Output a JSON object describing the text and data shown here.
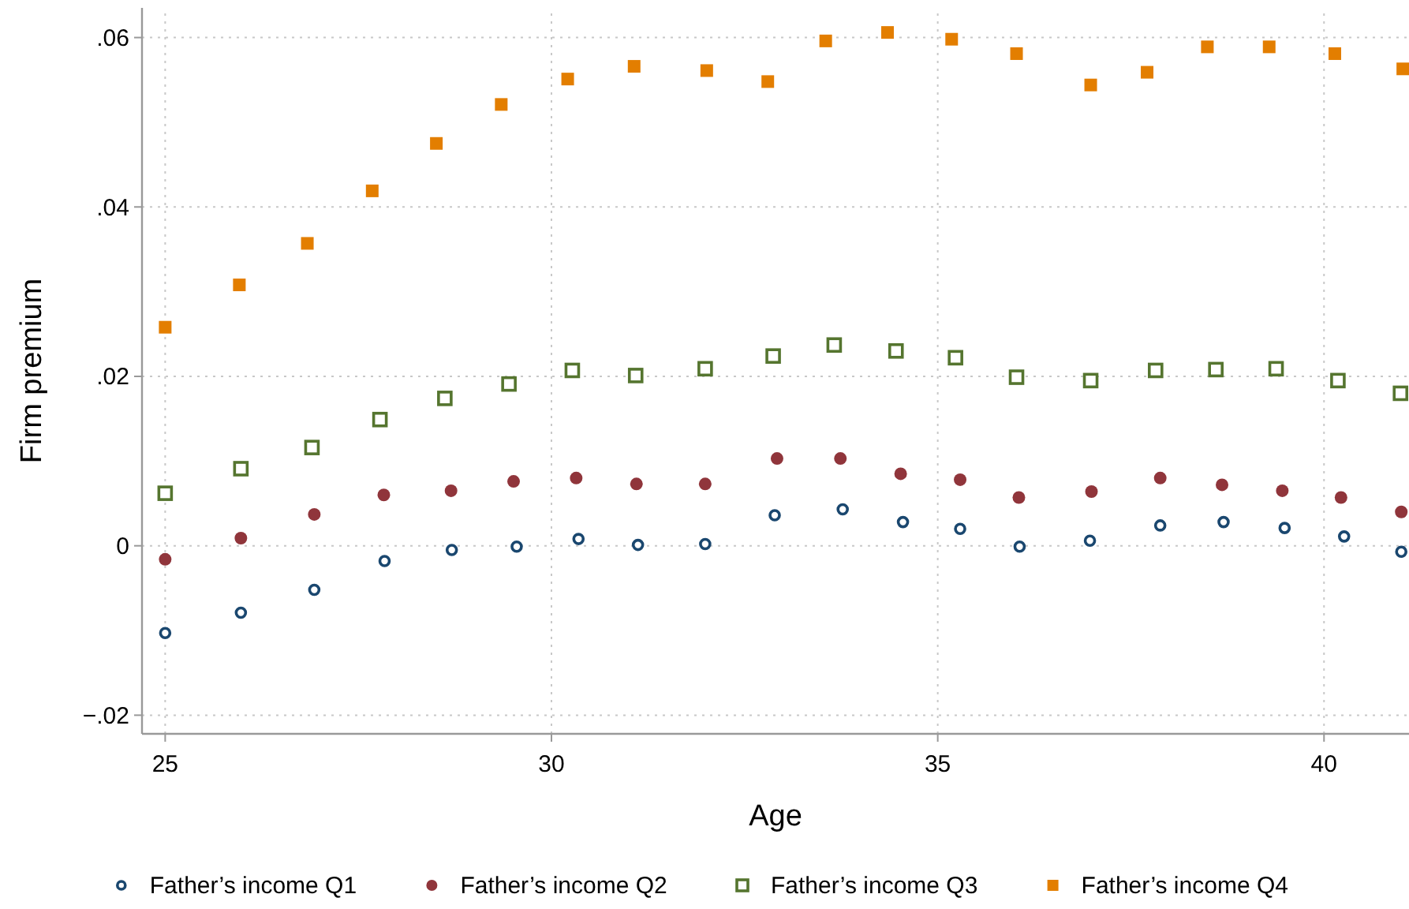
{
  "chart_data": {
    "type": "scatter",
    "xlabel": "Age",
    "ylabel": "Firm premium",
    "xlim": [
      24.7,
      41.1
    ],
    "ylim": [
      -0.0222,
      0.0635
    ],
    "xticks": [
      25,
      30,
      35,
      40
    ],
    "yticks": [
      {
        "value": -0.02,
        "label": "−.02"
      },
      {
        "value": 0,
        "label": "0"
      },
      {
        "value": 0.02,
        "label": ".02"
      },
      {
        "value": 0.04,
        "label": ".04"
      },
      {
        "value": 0.06,
        "label": ".06"
      }
    ],
    "grid": true,
    "legend": "bottom",
    "series": [
      {
        "name": "Father’s income Q1",
        "color": "#1a476f",
        "marker": "circle",
        "x": [
          25,
          25.98,
          26.93,
          27.84,
          28.71,
          29.55,
          30.35,
          31.12,
          31.99,
          32.89,
          33.77,
          34.55,
          35.29,
          36.06,
          36.97,
          37.88,
          38.7,
          39.49,
          40.26,
          41.0
        ],
        "values": [
          -0.0103,
          -0.0079,
          -0.0052,
          -0.0018,
          -0.0005,
          -0.0001,
          0.0008,
          0.0001,
          0.0002,
          0.0036,
          0.0043,
          0.0028,
          0.002,
          -0.0001,
          0.0006,
          0.0024,
          0.0028,
          0.0021,
          0.0011,
          -0.0007
        ]
      },
      {
        "name": "Father’s income Q2",
        "color": "#90353b",
        "marker": "circle",
        "x": [
          25,
          25.98,
          26.93,
          27.83,
          28.7,
          29.51,
          30.32,
          31.1,
          31.99,
          32.92,
          33.74,
          34.52,
          35.29,
          36.05,
          36.99,
          37.88,
          38.68,
          39.46,
          40.22,
          41.0
        ],
        "values": [
          -0.0016,
          0.0009,
          0.0037,
          0.006,
          0.0065,
          0.0076,
          0.008,
          0.0073,
          0.0073,
          0.0103,
          0.0103,
          0.0085,
          0.0078,
          0.0057,
          0.0064,
          0.008,
          0.0072,
          0.0065,
          0.0057,
          0.004
        ]
      },
      {
        "name": "Father’s income Q3",
        "color": "#55752f",
        "marker": "square",
        "x": [
          25,
          25.98,
          26.9,
          27.78,
          28.62,
          29.45,
          30.27,
          31.09,
          31.99,
          32.87,
          33.66,
          34.46,
          35.23,
          36.02,
          36.98,
          37.82,
          38.6,
          39.38,
          40.18,
          40.99
        ],
        "values": [
          0.0062,
          0.0091,
          0.0116,
          0.0149,
          0.0174,
          0.0191,
          0.0207,
          0.0201,
          0.0209,
          0.0224,
          0.0237,
          0.023,
          0.0222,
          0.0199,
          0.0195,
          0.0207,
          0.0208,
          0.0209,
          0.0195,
          0.018
        ]
      },
      {
        "name": "Father’s income Q4",
        "color": "#e37e00",
        "marker": "square",
        "x": [
          25,
          25.96,
          26.84,
          27.68,
          28.51,
          29.35,
          30.21,
          31.07,
          32.01,
          32.8,
          33.55,
          34.35,
          35.18,
          36.02,
          36.98,
          37.71,
          38.49,
          39.29,
          40.14,
          41.02
        ],
        "values": [
          0.0258,
          0.0308,
          0.0357,
          0.0419,
          0.0475,
          0.0521,
          0.0551,
          0.0566,
          0.0561,
          0.0548,
          0.0596,
          0.0606,
          0.0598,
          0.0581,
          0.0544,
          0.0559,
          0.0589,
          0.0589,
          0.0581,
          0.0563
        ]
      }
    ]
  }
}
